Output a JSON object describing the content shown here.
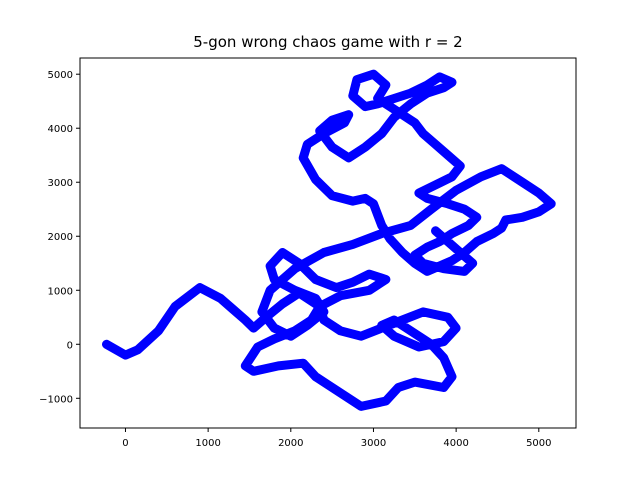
{
  "chart_data": {
    "type": "line",
    "title": "5-gon wrong chaos game with r = 2",
    "xlabel": "",
    "ylabel": "",
    "xlim": [
      -550,
      5450
    ],
    "ylim": [
      -1550,
      5300
    ],
    "xticks": [
      0,
      1000,
      2000,
      3000,
      4000,
      5000
    ],
    "yticks": [
      -1000,
      0,
      1000,
      2000,
      3000,
      4000,
      5000
    ],
    "grid": false,
    "series": [
      {
        "color": "#0000ff",
        "x": [
          -230,
          0,
          150,
          400,
          600,
          900,
          1150,
          1300,
          1450,
          1550,
          1700,
          1900,
          2100,
          2350,
          2250,
          2050,
          1800,
          1600,
          1450,
          1550,
          1850,
          2150,
          2300,
          2600,
          2850,
          3150,
          3300,
          3500,
          3850,
          3950,
          3850,
          3700,
          3500,
          3250,
          3100,
          3250,
          3550,
          3850,
          4000,
          3900,
          3600,
          3350,
          3100,
          2850,
          2600,
          2400,
          2350,
          2600,
          2950,
          3150,
          2950,
          2750,
          2550,
          2300,
          2100,
          1900,
          1750,
          1800,
          2050,
          2300,
          2400,
          2200,
          2000,
          1800,
          1650,
          1750,
          2050,
          2400,
          2750,
          3100,
          3450,
          3700,
          4000,
          4300,
          4550,
          4800,
          5000,
          5150,
          5000,
          4800,
          4600,
          4550,
          4450,
          4250,
          4100,
          3950,
          3800,
          3650,
          3500,
          3350,
          3200,
          3100,
          3050,
          3000,
          2900,
          2750,
          2500,
          2300,
          2150,
          2200,
          2400,
          2650,
          2700,
          2500,
          2350,
          2500,
          2700,
          2900,
          3100,
          3250,
          3450,
          3650,
          3850,
          3950,
          3800,
          3650,
          3450,
          3250,
          3050,
          2900,
          2750,
          2800,
          3000,
          3150,
          3050,
          3300,
          3500,
          3600,
          3750,
          3900,
          4050,
          3950,
          3750,
          3550,
          3650,
          3900,
          4100,
          4250,
          4150,
          3950,
          3800,
          3650,
          3500,
          3600,
          3850,
          4100,
          4200,
          4050,
          3900,
          3750
        ],
        "y": [
          0,
          -200,
          -100,
          250,
          700,
          1050,
          850,
          650,
          450,
          300,
          500,
          750,
          950,
          700,
          450,
          250,
          100,
          -50,
          -400,
          -500,
          -400,
          -350,
          -600,
          -900,
          -1150,
          -1050,
          -800,
          -700,
          -800,
          -600,
          -250,
          0,
          200,
          450,
          350,
          150,
          -50,
          50,
          300,
          500,
          600,
          450,
          300,
          150,
          250,
          450,
          700,
          900,
          1000,
          1200,
          1300,
          1150,
          1050,
          1200,
          1500,
          1700,
          1450,
          1200,
          1000,
          850,
          600,
          350,
          150,
          300,
          600,
          1000,
          1400,
          1700,
          1850,
          2050,
          2200,
          2500,
          2850,
          3100,
          3250,
          3000,
          2800,
          2600,
          2450,
          2350,
          2300,
          2150,
          2050,
          1900,
          1700,
          1550,
          1450,
          1350,
          1500,
          1700,
          1950,
          2200,
          2400,
          2600,
          2700,
          2650,
          2750,
          3050,
          3450,
          3700,
          3900,
          4100,
          4250,
          4150,
          3950,
          3650,
          3450,
          3650,
          3900,
          4200,
          4450,
          4650,
          4750,
          4850,
          4950,
          4800,
          4650,
          4550,
          4450,
          4400,
          4600,
          4900,
          5000,
          4800,
          4550,
          4300,
          4100,
          3900,
          3700,
          3500,
          3300,
          3100,
          2950,
          2800,
          2700,
          2600,
          2500,
          2350,
          2200,
          2050,
          1900,
          1800,
          1650,
          1500,
          1400,
          1350,
          1500,
          1700,
          1900,
          2100
        ]
      }
    ]
  }
}
